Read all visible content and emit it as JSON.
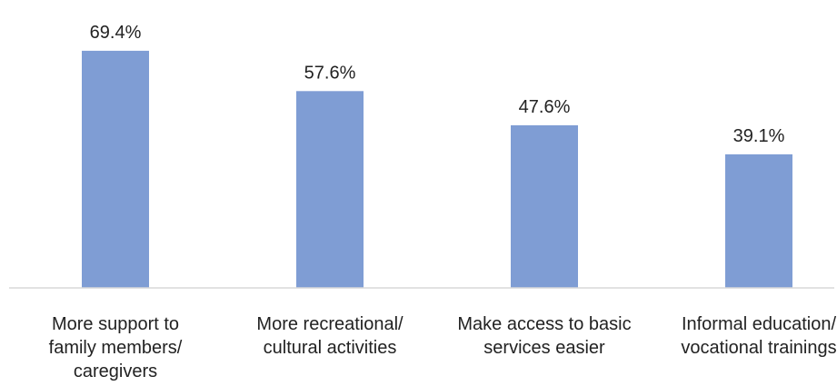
{
  "chart_data": {
    "type": "bar",
    "categories": [
      "More support to family members/ caregivers",
      "More recreational/ cultural activities",
      "Make access to basic services easier",
      "Informal education/ vocational trainings"
    ],
    "category_lines": [
      [
        "More support to",
        "family members/",
        "caregivers"
      ],
      [
        "More recreational/",
        "cultural activities"
      ],
      [
        "Make access to basic",
        "services easier"
      ],
      [
        "Informal education/",
        "vocational trainings"
      ]
    ],
    "values": [
      69.4,
      57.6,
      47.6,
      39.1
    ],
    "data_labels": [
      "69.4%",
      "57.6%",
      "47.6%",
      "39.1%"
    ],
    "title": "",
    "xlabel": "",
    "ylabel": "",
    "ylim": [
      0,
      80
    ],
    "grid": false,
    "legend": "none",
    "colors": {
      "bar": "#7f9dd4",
      "axis": "#d9d9d9",
      "text": "#222222"
    }
  }
}
